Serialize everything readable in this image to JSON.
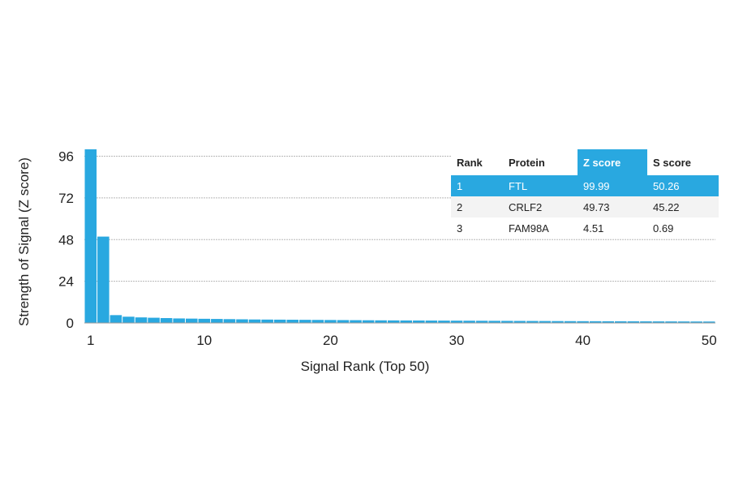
{
  "chart_data": {
    "type": "bar",
    "xlabel": "Signal Rank (Top 50)",
    "ylabel": "Strength of Signal (Z score)",
    "xlim": [
      1,
      50
    ],
    "ylim": [
      0,
      100
    ],
    "x_ticks": [
      1,
      10,
      20,
      30,
      40,
      50
    ],
    "y_ticks": [
      0,
      24,
      48,
      72,
      96
    ],
    "grid": "horizontal",
    "bar_color": "#29a8e0",
    "x": [
      1,
      2,
      3,
      4,
      5,
      6,
      7,
      8,
      9,
      10,
      11,
      12,
      13,
      14,
      15,
      16,
      17,
      18,
      19,
      20,
      21,
      22,
      23,
      24,
      25,
      26,
      27,
      28,
      29,
      30,
      31,
      32,
      33,
      34,
      35,
      36,
      37,
      38,
      39,
      40,
      41,
      42,
      43,
      44,
      45,
      46,
      47,
      48,
      49,
      50
    ],
    "values": [
      99.99,
      49.73,
      4.51,
      3.6,
      3.2,
      3.0,
      2.8,
      2.6,
      2.5,
      2.4,
      2.3,
      2.2,
      2.1,
      2.0,
      1.95,
      1.9,
      1.85,
      1.8,
      1.75,
      1.7,
      1.65,
      1.6,
      1.55,
      1.5,
      1.47,
      1.44,
      1.41,
      1.38,
      1.35,
      1.32,
      1.29,
      1.26,
      1.23,
      1.2,
      1.17,
      1.14,
      1.11,
      1.08,
      1.05,
      1.02,
      1.0,
      0.98,
      0.96,
      0.94,
      0.92,
      0.9,
      0.88,
      0.86,
      0.84,
      0.82
    ]
  },
  "table": {
    "headers": {
      "rank": "Rank",
      "protein": "Protein",
      "z": "Z score",
      "s": "S score"
    },
    "rows": [
      {
        "rank": "1",
        "protein": "FTL",
        "z": "99.99",
        "s": "50.26"
      },
      {
        "rank": "2",
        "protein": "CRLF2",
        "z": "49.73",
        "s": "45.22"
      },
      {
        "rank": "3",
        "protein": "FAM98A",
        "z": "4.51",
        "s": "0.69"
      }
    ],
    "highlight_color": "#29a8e0"
  }
}
